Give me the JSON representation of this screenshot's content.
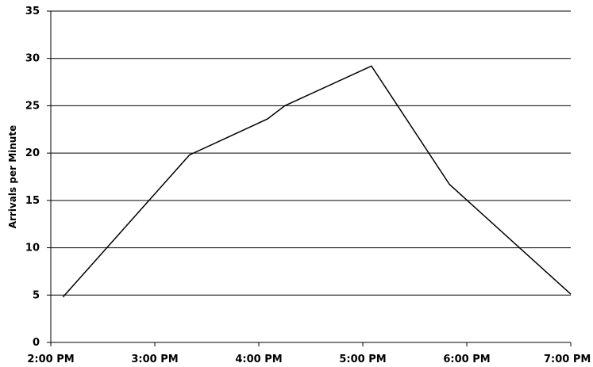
{
  "chart_data": {
    "type": "line",
    "title": "",
    "xlabel": "",
    "ylabel": "Arrivals per Minute",
    "ylim": [
      0,
      35
    ],
    "xlim": [
      "2:00 PM",
      "7:00 PM"
    ],
    "y_ticks": [
      "0",
      "5",
      "10",
      "15",
      "20",
      "25",
      "30",
      "35"
    ],
    "x_ticks": [
      "2:00 PM",
      "3:00 PM",
      "4:00 PM",
      "5:00 PM",
      "6:00 PM",
      "7:00 PM"
    ],
    "grid": true,
    "legend": "none",
    "line_color": "#000000",
    "series": [
      {
        "x": [
          "2:07 PM",
          "3:20 PM",
          "4:05 PM",
          "4:15 PM",
          "5:05 PM",
          "5:50 PM",
          "7:00 PM"
        ],
        "y": [
          4.8,
          19.8,
          23.6,
          25.0,
          29.2,
          16.7,
          5.1
        ]
      }
    ]
  }
}
